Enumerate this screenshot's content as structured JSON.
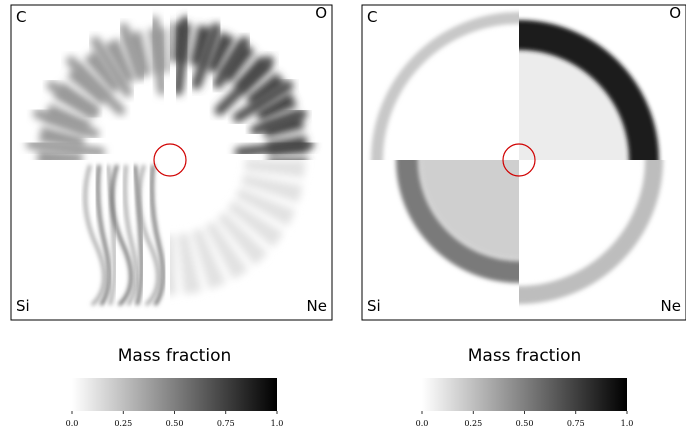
{
  "panels": [
    {
      "labels": [
        "C",
        "O",
        "Si",
        "Ne"
      ],
      "colorbar": {
        "title": "Mass fraction",
        "range": [
          0,
          1
        ],
        "ticks": [
          {
            "value": 0,
            "label": "0.0"
          },
          0.25,
          {
            "value": 0.5,
            "label": "0.50"
          },
          0.75,
          {
            "value": 1,
            "label": "1.0"
          }
        ]
      }
    },
    {
      "labels": [
        "C",
        "O",
        "Si",
        "Ne"
      ],
      "colorbar": {
        "title": "Mass fraction",
        "range": [
          0,
          1
        ],
        "ticks": [
          {
            "value": 0,
            "label": "0.0"
          },
          0.25,
          {
            "value": 0.5,
            "label": "0.50"
          },
          0.75,
          {
            "value": 1,
            "label": "1.0"
          }
        ]
      }
    }
  ]
}
